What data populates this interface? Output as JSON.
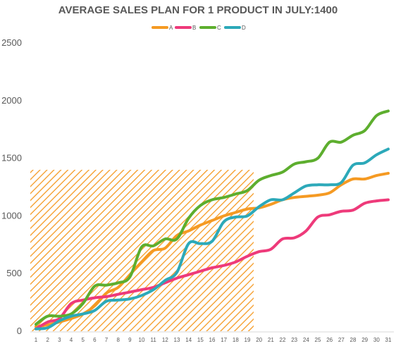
{
  "chart_data": {
    "type": "line",
    "title": "AVERAGE SALES PLAN FOR 1 PRODUCT IN JULY:1400",
    "xlabel": "",
    "ylabel": "",
    "x": [
      1,
      2,
      3,
      4,
      5,
      6,
      7,
      8,
      9,
      10,
      11,
      12,
      13,
      14,
      15,
      16,
      17,
      18,
      19,
      20,
      21,
      22,
      23,
      24,
      25,
      26,
      27,
      28,
      29,
      30,
      31
    ],
    "ylim": [
      0,
      2500
    ],
    "yticks": [
      0,
      500,
      1000,
      1500,
      2000,
      2500
    ],
    "grid": false,
    "legend": "top-center",
    "highlight": {
      "label": "1400",
      "x_end": 19,
      "y_top": 1400,
      "pattern": "diagonal-hatch",
      "color": "#F59A23"
    },
    "series": [
      {
        "name": "A",
        "color": "#F59A23",
        "values": [
          40,
          55,
          80,
          110,
          150,
          220,
          330,
          380,
          490,
          600,
          700,
          720,
          830,
          870,
          920,
          960,
          1000,
          1030,
          1060,
          1070,
          1100,
          1140,
          1160,
          1170,
          1180,
          1200,
          1270,
          1320,
          1320,
          1350,
          1370
        ]
      },
      {
        "name": "B",
        "color": "#EE3A7A",
        "values": [
          20,
          80,
          110,
          240,
          270,
          290,
          300,
          320,
          340,
          360,
          380,
          420,
          460,
          490,
          520,
          550,
          570,
          600,
          650,
          690,
          710,
          800,
          810,
          870,
          990,
          1010,
          1040,
          1050,
          1110,
          1130,
          1140
        ]
      },
      {
        "name": "C",
        "color": "#5DAE2E",
        "values": [
          60,
          130,
          130,
          150,
          240,
          390,
          400,
          420,
          470,
          730,
          740,
          800,
          800,
          980,
          1090,
          1140,
          1160,
          1190,
          1220,
          1310,
          1350,
          1380,
          1450,
          1470,
          1500,
          1640,
          1640,
          1700,
          1740,
          1870,
          1910
        ]
      },
      {
        "name": "D",
        "color": "#2CA9B9",
        "values": [
          20,
          30,
          90,
          130,
          150,
          180,
          260,
          270,
          280,
          310,
          360,
          440,
          510,
          760,
          760,
          780,
          950,
          990,
          1000,
          1080,
          1140,
          1140,
          1200,
          1260,
          1270,
          1270,
          1290,
          1440,
          1460,
          1530,
          1580
        ]
      }
    ]
  }
}
